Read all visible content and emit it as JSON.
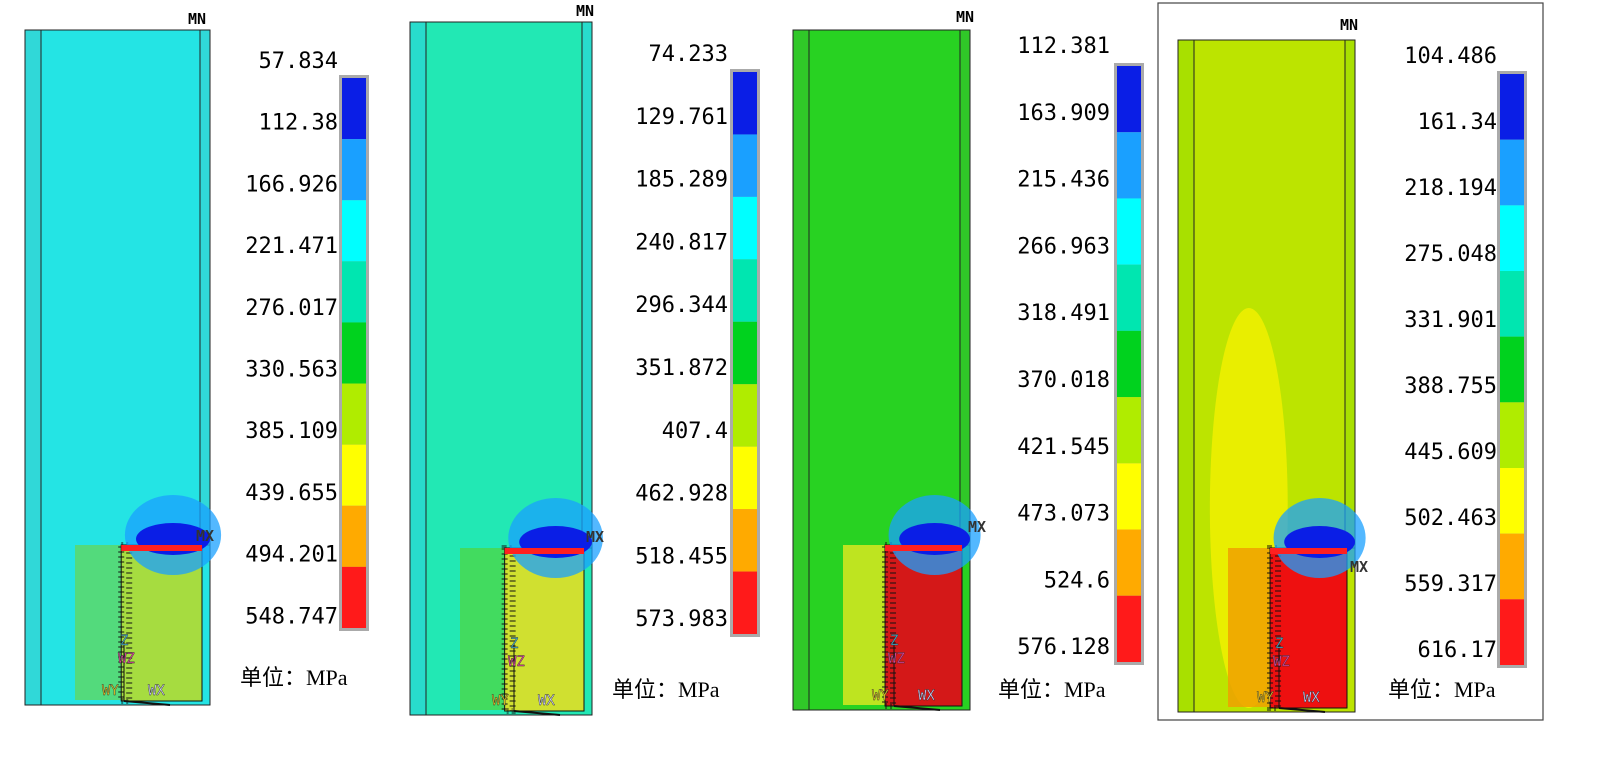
{
  "panels": [
    {
      "mn": "MN",
      "mx": "MX",
      "legend": [
        "57.834",
        "112.38",
        "166.926",
        "221.471",
        "276.017",
        "330.563",
        "385.109",
        "439.655",
        "494.201",
        "548.747"
      ],
      "unit": "单位：MPa",
      "triad": [
        "Z",
        "WZ",
        "WY",
        "WX"
      ]
    },
    {
      "mn": "MN",
      "mx": "MX",
      "legend": [
        "74.233",
        "129.761",
        "185.289",
        "240.817",
        "296.344",
        "351.872",
        "407.4",
        "462.928",
        "518.455",
        "573.983"
      ],
      "unit": "单位：MPa",
      "triad": [
        "Z",
        "WZ",
        "WY",
        "WX"
      ]
    },
    {
      "mn": "MN",
      "mx": "MX",
      "legend": [
        "112.381",
        "163.909",
        "215.436",
        "266.963",
        "318.491",
        "370.018",
        "421.545",
        "473.073",
        "524.6",
        "576.128"
      ],
      "unit": "单位：MPa",
      "triad": [
        "Z",
        "WZ",
        "WY",
        "WX"
      ]
    },
    {
      "mn": "MN",
      "mx": "MX",
      "legend": [
        "104.486",
        "161.34",
        "218.194",
        "275.048",
        "331.901",
        "388.755",
        "445.609",
        "502.463",
        "559.317",
        "616.17"
      ],
      "unit": "单位：MPa",
      "triad": [
        "Z",
        "WZ",
        "WY",
        "WX"
      ]
    }
  ]
}
